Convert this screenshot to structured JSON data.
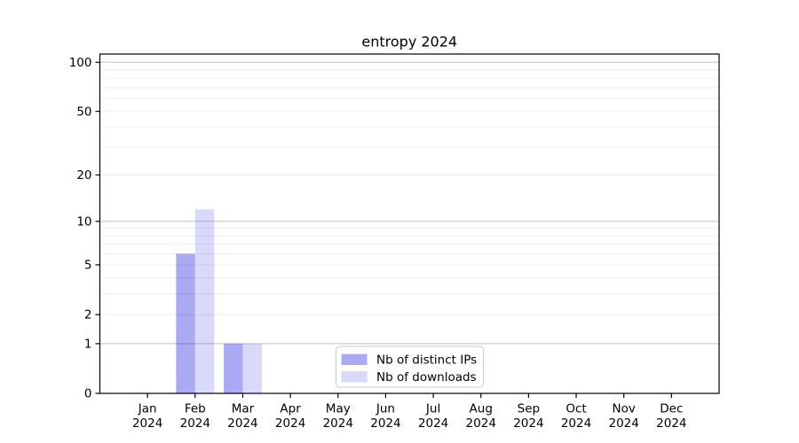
{
  "figure": {
    "title": "entropy 2024",
    "background": "#ffffff"
  },
  "chart_data": {
    "type": "bar",
    "title": "entropy 2024",
    "categories": [
      "Jan",
      "Feb",
      "Mar",
      "Apr",
      "May",
      "Jun",
      "Jul",
      "Aug",
      "Sep",
      "Oct",
      "Nov",
      "Dec"
    ],
    "x_tick_second_line": "2024",
    "series": [
      {
        "name": "Nb of distinct IPs",
        "color": "#a9a9f4",
        "values": [
          0,
          6,
          1,
          0,
          0,
          0,
          0,
          0,
          0,
          0,
          0,
          0
        ]
      },
      {
        "name": "Nb of downloads",
        "color": "#d9daf9",
        "values": [
          0,
          12,
          1,
          0,
          0,
          0,
          0,
          0,
          0,
          0,
          0,
          0
        ]
      }
    ],
    "xlabel": "",
    "ylabel": "",
    "yscale": "log1p",
    "y_ticks": [
      0,
      1,
      2,
      5,
      10,
      20,
      50,
      100
    ],
    "y_major_gridlines": [
      1,
      10,
      100
    ],
    "y_minor_gridlines": [
      2,
      3,
      4,
      5,
      6,
      7,
      8,
      9,
      20,
      30,
      40,
      50,
      60,
      70,
      80,
      90
    ],
    "ylim": [
      0,
      110
    ],
    "grid": true,
    "legend_position": "lower center",
    "legend_labels": [
      "Nb of distinct IPs",
      "Nb of downloads"
    ]
  },
  "colors": {
    "series_ips": "#a9a9f4",
    "series_downloads": "#d9daf9",
    "grid_major": "rgba(0,0,0,0.24)",
    "grid_minor": "rgba(0,0,0,0.07)",
    "axis": "#000000",
    "legend_border": "#cccccc",
    "legend_bg": "#ffffff"
  }
}
